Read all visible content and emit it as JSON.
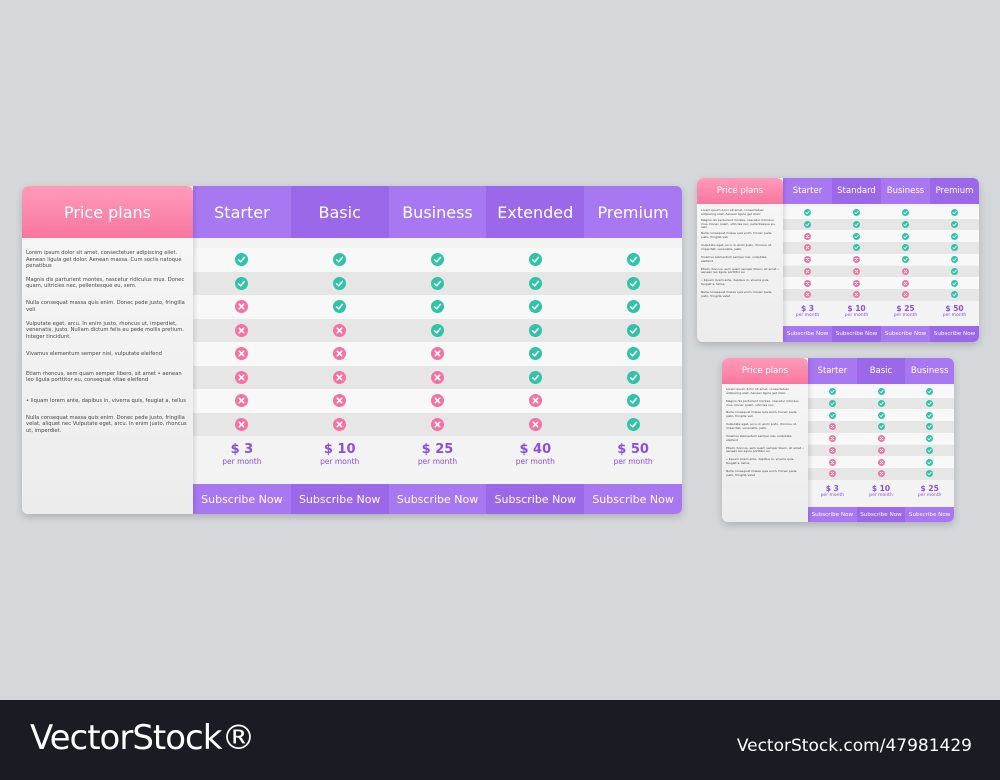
{
  "tables": [
    {
      "title": "Price plans",
      "plans": [
        {
          "name": "Starter",
          "price": "$ 3",
          "period": "per month",
          "button": "Subscribe Now"
        },
        {
          "name": "Basic",
          "price": "$ 10",
          "period": "per month",
          "button": "Subscribe Now"
        },
        {
          "name": "Business",
          "price": "$ 25",
          "period": "per month",
          "button": "Subscribe Now"
        },
        {
          "name": "Extended",
          "price": "$ 40",
          "period": "per month",
          "button": "Subscribe Now"
        },
        {
          "name": "Premium",
          "price": "$ 50",
          "period": "per month",
          "button": "Subscribe Now"
        }
      ],
      "features": [
        {
          "text": "Lorem ipsum dolor sit amet, consectetuer adipiscing eliet. Aenean ligula get dolor. Aenean massa. Cum sociis natoque penatibus",
          "included": [
            true,
            true,
            true,
            true,
            true
          ]
        },
        {
          "text": "Magnis dis parturient montes, nascetur ridiculus mus. Donec quam, ultricies nec, pellentesque eu, sem.",
          "included": [
            true,
            true,
            true,
            true,
            true
          ]
        },
        {
          "text": "Nulla consequat massa quis enim. Donec pede justo, fringilla veli",
          "included": [
            false,
            true,
            true,
            true,
            true
          ]
        },
        {
          "text": "Vulputate eget, arcu. In enim justo, rhoncus ut, imperdiet, venenatis, justo. Nullam dictum felis eu pede mollis pretium. Integer tincidunt.",
          "included": [
            false,
            false,
            true,
            true,
            true
          ]
        },
        {
          "text": "Vivamus elementum semper nisi, vulputate eleifend",
          "included": [
            false,
            false,
            false,
            true,
            true
          ]
        },
        {
          "text": "Etiam rhoncus, sem quam semper libero, sit amet • aenean leo ligula porttitor eu, consequat vitae eleifend",
          "included": [
            false,
            false,
            false,
            true,
            true
          ]
        },
        {
          "text": "• liquam lorem ante, dapibus in, viverra quis, feugiat a, tellus",
          "included": [
            false,
            false,
            false,
            false,
            true
          ]
        },
        {
          "text": "Nulla consequat massa quis enim. Donec pede justo, fringilla velat, aliquet nec Vulputate eget, arcu. In enim justo, rhoncus ut, imperdiet.",
          "included": [
            false,
            false,
            false,
            false,
            true
          ]
        }
      ]
    },
    {
      "title": "Price plans",
      "plans": [
        {
          "name": "Starter",
          "price": "$ 3",
          "period": "per month",
          "button": "Subscribe Now"
        },
        {
          "name": "Standard",
          "price": "$ 10",
          "period": "per month",
          "button": "Subscribe Now"
        },
        {
          "name": "Business",
          "price": "$ 25",
          "period": "per month",
          "button": "Subscribe Now"
        },
        {
          "name": "Premium",
          "price": "$ 50",
          "period": "per month",
          "button": "Subscribe Now"
        }
      ],
      "features": [
        {
          "text": "Lorem ipsum dolor sit amet, consectetuer adipiscing eliet. Aenean ligula get dolor.",
          "included": [
            true,
            true,
            true,
            true
          ]
        },
        {
          "text": "Magnis dis parturient montes, nascetur ridiculus mus. Donec quam, ultricies nec, pellentesque eu, sem.",
          "included": [
            true,
            true,
            true,
            true
          ]
        },
        {
          "text": "Nulla consequat massa quis enim. Donec pede justo, fringilla veli",
          "included": [
            false,
            true,
            true,
            true
          ]
        },
        {
          "text": "Vulputate eget, arcu. In enim justo, rhoncus ut, imperdiet, venenatis, justo.",
          "included": [
            false,
            true,
            true,
            true
          ]
        },
        {
          "text": "Vivamus elementum semper nisi, vulputate eleifend",
          "included": [
            false,
            false,
            true,
            true
          ]
        },
        {
          "text": "Etiam rhoncus, sem quam semper libero, sit amet • aenean leo ligula porttitor eu",
          "included": [
            false,
            false,
            false,
            true
          ]
        },
        {
          "text": "• liquam lorem ante, dapibus in, viverra quis, feugiat a, tellus",
          "included": [
            false,
            false,
            false,
            true
          ]
        },
        {
          "text": "Nulla consequat massa quis enim. Donec pede justo, fringilla velat",
          "included": [
            false,
            false,
            false,
            true
          ]
        }
      ]
    },
    {
      "title": "Price plans",
      "plans": [
        {
          "name": "Starter",
          "price": "$ 3",
          "period": "per month",
          "button": "Subscribe Now"
        },
        {
          "name": "Basic",
          "price": "$ 10",
          "period": "per month",
          "button": "Subscribe Now"
        },
        {
          "name": "Business",
          "price": "$ 25",
          "period": "per month",
          "button": "Subscribe Now"
        }
      ],
      "features": [
        {
          "text": "Lorem ipsum dolor sit amet, consectetuer adipiscing eliet. Aenean ligula get dolor.",
          "included": [
            true,
            true,
            true
          ]
        },
        {
          "text": "Magnis dis parturient montes, nascetur ridiculus mus. Donec quam, ultricies nec.",
          "included": [
            true,
            true,
            true
          ]
        },
        {
          "text": "Nulla consequat massa quis enim. Donec pede justo, fringilla veli",
          "included": [
            true,
            true,
            true
          ]
        },
        {
          "text": "Vulputate eget, arcu. In enim justo, rhoncus ut, imperdiet, venenatis, justo.",
          "included": [
            false,
            true,
            true
          ]
        },
        {
          "text": "Vivamus elementum semper nisi, vulputate eleifend",
          "included": [
            false,
            false,
            true
          ]
        },
        {
          "text": "Etiam rhoncus, sem quam semper libero, sit amet • aenean leo ligula porttitor eu",
          "included": [
            false,
            false,
            true
          ]
        },
        {
          "text": "• liquam lorem ante, dapibus in, viverra quis, feugiat a, tellus",
          "included": [
            false,
            false,
            true
          ]
        },
        {
          "text": "Nulla consequat massa quis enim. Donec pede justo, fringilla velat",
          "included": [
            false,
            false,
            true
          ]
        }
      ]
    }
  ],
  "footer": {
    "brand": "VectorStock®",
    "id": "VectorStock.com/47981429"
  }
}
